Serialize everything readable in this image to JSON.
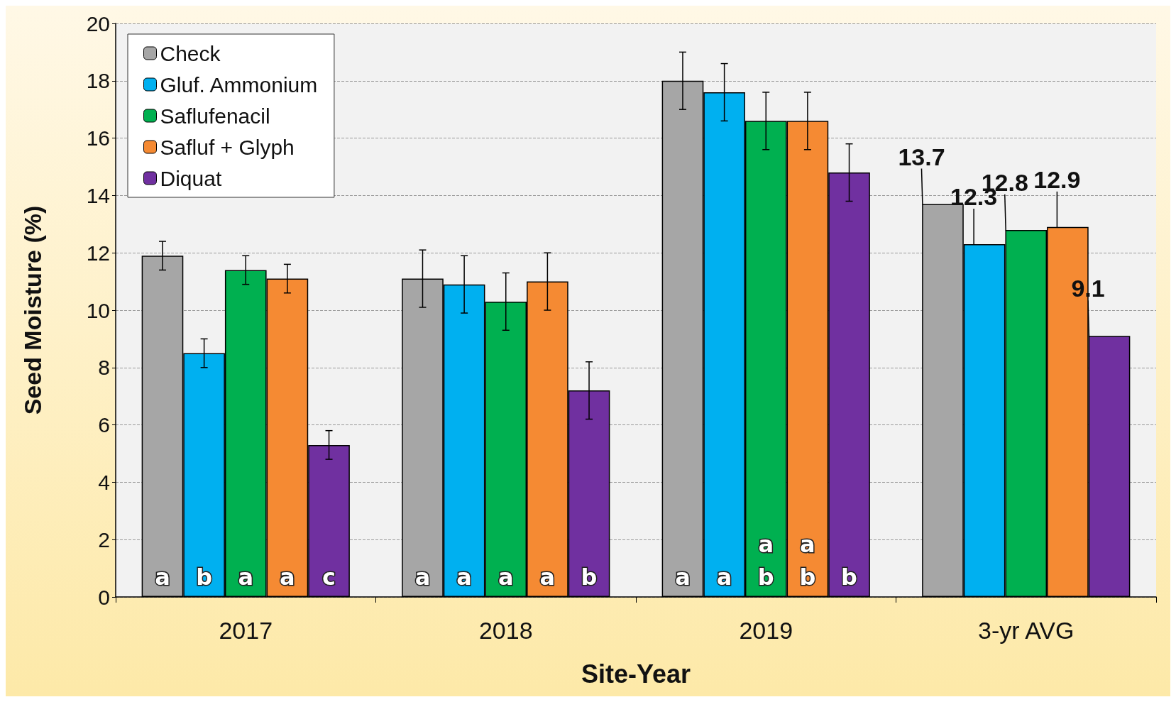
{
  "chart_data": {
    "type": "bar",
    "xlabel": "Site-Year",
    "ylabel": "Seed Moisture (%)",
    "categories": [
      "2017",
      "2018",
      "2019",
      "3-yr AVG"
    ],
    "ylim": [
      0,
      20
    ],
    "yticks": [
      0,
      2,
      4,
      6,
      8,
      10,
      12,
      14,
      16,
      18,
      20
    ],
    "grid": "y",
    "legend": "top left",
    "series": [
      {
        "name": "Check",
        "color": "#a6a6a6",
        "values": [
          11.9,
          11.1,
          18.0,
          13.7
        ],
        "errors": [
          0.5,
          1,
          1,
          null
        ],
        "value_labels": [
          "a",
          "a",
          "a",
          "13.7"
        ]
      },
      {
        "name": "Gluf. Ammonium",
        "color": "#00b0f0",
        "values": [
          8.5,
          10.9,
          17.6,
          12.3
        ],
        "errors": [
          0.5,
          1,
          1,
          null
        ],
        "value_labels": [
          "b",
          "a",
          "a",
          "12.3"
        ]
      },
      {
        "name": "Saflufenacil",
        "color": "#00b050",
        "values": [
          11.4,
          10.3,
          16.6,
          12.8
        ],
        "errors": [
          0.5,
          1,
          1,
          null
        ],
        "value_labels": [
          "a",
          "a",
          "a\nb",
          "12.8"
        ]
      },
      {
        "name": "Safluf + Glyph",
        "color": "#f58a33",
        "values": [
          11.1,
          11.0,
          16.6,
          12.9
        ],
        "errors": [
          0.5,
          1,
          1,
          null
        ],
        "value_labels": [
          "a",
          "a",
          "a\nb",
          "12.9"
        ]
      },
      {
        "name": "Diquat",
        "color": "#7030a0",
        "values": [
          5.3,
          7.2,
          14.8,
          9.1
        ],
        "errors": [
          0.5,
          1,
          1,
          null
        ],
        "value_labels": [
          "c",
          "b",
          "b",
          "9.1"
        ]
      }
    ]
  }
}
